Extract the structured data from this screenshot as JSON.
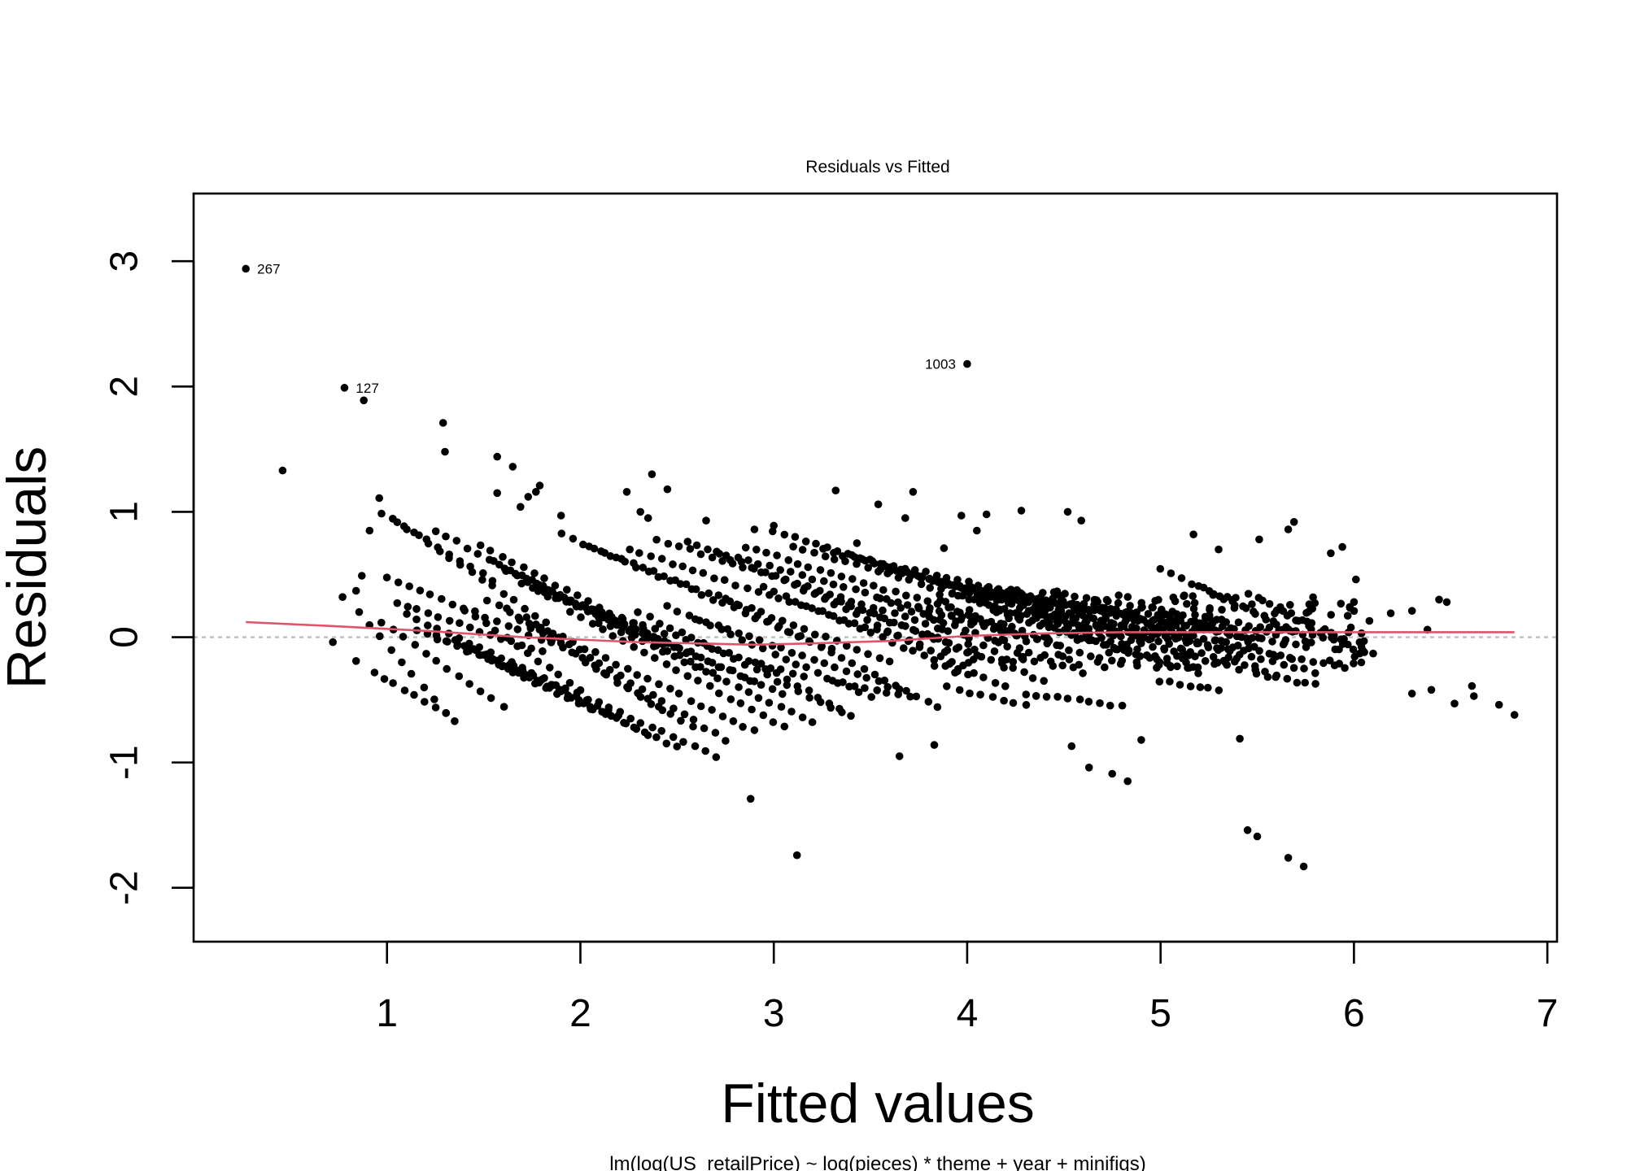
{
  "chart_data": {
    "type": "scatter",
    "title": "Residuals vs Fitted",
    "subtitle": "lm(log(US_retailPrice) ~ log(pieces) * theme + year + minifigs)",
    "xlabel": "Fitted values",
    "ylabel": "Residuals",
    "xlim": [
      0.0,
      7.05
    ],
    "ylim": [
      -2.43,
      3.54
    ],
    "xticks": [
      1,
      2,
      3,
      4,
      5,
      6,
      7
    ],
    "xtick_labels": [
      "1",
      "2",
      "3",
      "4",
      "5",
      "6",
      "7"
    ],
    "yticks": [
      -2,
      -1,
      0,
      1,
      2,
      3
    ],
    "ytick_labels": [
      "-2",
      "-1",
      "0",
      "1",
      "2",
      "3"
    ],
    "zero_line": true,
    "grid": false,
    "colors": {
      "points": "#000000",
      "smooth": "#DF536B",
      "zero_line": "#BEBEBE"
    },
    "labeled_points": [
      {
        "label": "267",
        "x": 0.27,
        "y": 2.94,
        "side": "right"
      },
      {
        "label": "127",
        "x": 0.78,
        "y": 1.99,
        "side": "right"
      },
      {
        "label": "1003",
        "x": 4.0,
        "y": 2.18,
        "side": "left"
      }
    ],
    "outliers": [
      [
        0.46,
        1.33
      ],
      [
        0.88,
        1.89
      ],
      [
        1.29,
        1.71
      ],
      [
        1.3,
        1.48
      ],
      [
        0.91,
        0.85
      ],
      [
        0.96,
        1.11
      ],
      [
        0.87,
        0.49
      ],
      [
        0.84,
        0.37
      ],
      [
        0.77,
        0.32
      ],
      [
        0.72,
        -0.04
      ],
      [
        0.84,
        -0.19
      ],
      [
        1.35,
        -0.67
      ],
      [
        1.57,
        1.44
      ],
      [
        1.65,
        1.36
      ],
      [
        1.57,
        1.15
      ],
      [
        1.69,
        1.04
      ],
      [
        1.79,
        1.21
      ],
      [
        1.77,
        1.16
      ],
      [
        1.73,
        1.12
      ],
      [
        2.37,
        1.3
      ],
      [
        2.24,
        1.16
      ],
      [
        2.31,
        1.0
      ],
      [
        2.35,
        0.95
      ],
      [
        3.32,
        1.17
      ],
      [
        3.54,
        1.06
      ],
      [
        3.68,
        0.95
      ],
      [
        3.72,
        1.16
      ],
      [
        3.97,
        0.97
      ],
      [
        4.1,
        0.98
      ],
      [
        4.28,
        1.01
      ],
      [
        4.52,
        1.0
      ],
      [
        4.59,
        0.93
      ],
      [
        5.17,
        0.82
      ],
      [
        5.66,
        0.86
      ],
      [
        5.69,
        0.92
      ],
      [
        5.94,
        0.72
      ],
      [
        5.88,
        0.67
      ],
      [
        5.51,
        0.78
      ],
      [
        6.01,
        0.46
      ],
      [
        6.44,
        0.3
      ],
      [
        6.48,
        0.28
      ],
      [
        6.3,
        0.21
      ],
      [
        6.19,
        0.19
      ],
      [
        6.08,
        0.13
      ],
      [
        6.38,
        0.06
      ],
      [
        6.3,
        -0.45
      ],
      [
        6.4,
        -0.42
      ],
      [
        6.52,
        -0.53
      ],
      [
        6.61,
        -0.39
      ],
      [
        6.62,
        -0.47
      ],
      [
        6.75,
        -0.54
      ],
      [
        6.83,
        -0.62
      ],
      [
        2.88,
        -1.29
      ],
      [
        3.12,
        -1.74
      ],
      [
        3.65,
        -0.95
      ],
      [
        3.83,
        -0.86
      ],
      [
        5.41,
        -0.81
      ],
      [
        4.9,
        -0.82
      ],
      [
        4.83,
        -1.15
      ],
      [
        4.75,
        -1.09
      ],
      [
        4.63,
        -1.04
      ],
      [
        4.54,
        -0.87
      ],
      [
        5.45,
        -1.54
      ],
      [
        5.5,
        -1.59
      ],
      [
        5.66,
        -1.76
      ],
      [
        5.74,
        -1.83
      ],
      [
        1.9,
        0.97
      ],
      [
        2.45,
        1.18
      ],
      [
        2.9,
        0.86
      ],
      [
        3.0,
        0.89
      ],
      [
        3.43,
        0.75
      ],
      [
        3.88,
        0.71
      ],
      [
        4.05,
        0.85
      ],
      [
        5.3,
        0.7
      ],
      [
        2.65,
        0.93
      ]
    ],
    "bands": [
      [
        0.97,
        0.99,
        1.55,
        0.45
      ],
      [
        1.05,
        0.92,
        1.82,
        0.12
      ],
      [
        1.25,
        0.85,
        2.25,
        0.05
      ],
      [
        1.48,
        0.73,
        2.55,
        -0.12
      ],
      [
        1.55,
        0.6,
        2.68,
        -0.28
      ],
      [
        1.62,
        0.52,
        2.9,
        -0.35
      ],
      [
        1.7,
        0.42,
        3.05,
        -0.45
      ],
      [
        1.78,
        0.36,
        3.15,
        -0.32
      ],
      [
        1.9,
        0.82,
        3.3,
        -0.1
      ],
      [
        2.05,
        0.72,
        3.6,
        -0.2
      ],
      [
        2.25,
        0.7,
        3.75,
        -0.05
      ],
      [
        2.4,
        0.78,
        3.9,
        0.05
      ],
      [
        2.55,
        0.76,
        4.05,
        -0.15
      ],
      [
        2.7,
        0.68,
        4.25,
        0.02
      ],
      [
        2.85,
        0.72,
        4.4,
        0.0
      ],
      [
        3.0,
        0.85,
        4.6,
        0.08
      ],
      [
        3.1,
        0.73,
        4.8,
        -0.05
      ],
      [
        3.25,
        0.7,
        4.95,
        -0.02
      ],
      [
        3.4,
        0.65,
        5.1,
        0.05
      ],
      [
        3.55,
        0.55,
        5.2,
        -0.05
      ],
      [
        3.7,
        0.5,
        5.35,
        -0.1
      ],
      [
        3.85,
        0.44,
        5.45,
        0.0
      ],
      [
        4.05,
        0.4,
        5.6,
        0.02
      ],
      [
        4.25,
        0.33,
        5.75,
        -0.08
      ],
      [
        4.45,
        0.36,
        5.9,
        -0.02
      ],
      [
        1.0,
        0.48,
        1.85,
        -0.05
      ],
      [
        1.05,
        0.28,
        1.8,
        -0.12
      ],
      [
        1.1,
        0.18,
        1.75,
        -0.28
      ],
      [
        1.15,
        0.06,
        1.9,
        -0.42
      ],
      [
        1.25,
        0.02,
        2.05,
        -0.58
      ],
      [
        1.35,
        -0.02,
        2.2,
        -0.62
      ],
      [
        1.45,
        -0.1,
        2.35,
        -0.78
      ],
      [
        1.55,
        -0.18,
        2.5,
        -0.88
      ],
      [
        1.65,
        -0.22,
        2.7,
        -0.95
      ],
      [
        1.52,
        0.3,
        2.42,
        -0.58
      ],
      [
        1.62,
        0.22,
        2.58,
        -0.72
      ],
      [
        1.72,
        0.15,
        2.75,
        -0.82
      ],
      [
        1.8,
        0.08,
        2.9,
        -0.75
      ],
      [
        1.95,
        0.2,
        3.05,
        -0.72
      ],
      [
        2.1,
        0.12,
        3.2,
        -0.68
      ],
      [
        2.3,
        0.2,
        3.35,
        -0.6
      ],
      [
        2.45,
        0.25,
        3.5,
        -0.48
      ],
      [
        2.6,
        0.15,
        3.65,
        -0.42
      ],
      [
        2.75,
        0.3,
        3.85,
        -0.55
      ],
      [
        2.95,
        0.4,
        4.0,
        -0.3
      ],
      [
        3.15,
        0.38,
        4.2,
        -0.4
      ],
      [
        3.35,
        0.28,
        4.4,
        -0.35
      ],
      [
        3.55,
        0.3,
        4.6,
        -0.28
      ],
      [
        3.75,
        0.25,
        4.8,
        -0.22
      ],
      [
        3.95,
        0.33,
        5.0,
        -0.2
      ],
      [
        4.15,
        0.2,
        5.2,
        -0.28
      ],
      [
        4.35,
        0.18,
        5.4,
        -0.25
      ],
      [
        4.55,
        0.15,
        5.6,
        -0.3
      ],
      [
        4.75,
        0.1,
        5.8,
        -0.28
      ],
      [
        4.95,
        0.08,
        5.95,
        -0.25
      ],
      [
        0.85,
        0.2,
        1.3,
        -0.6
      ],
      [
        0.93,
        -0.28,
        1.3,
        -0.6
      ],
      [
        0.97,
        0.12,
        1.6,
        -0.55
      ],
      [
        1.4,
        0.22,
        2.0,
        -0.42
      ],
      [
        2.9,
        -0.2,
        3.4,
        -0.62
      ],
      [
        3.3,
        -0.35,
        3.7,
        -0.48
      ],
      [
        3.9,
        -0.4,
        4.3,
        -0.55
      ],
      [
        4.3,
        -0.45,
        4.8,
        -0.55
      ],
      [
        5.0,
        0.55,
        5.6,
        0.1
      ],
      [
        5.2,
        0.4,
        5.7,
        0.05
      ],
      [
        5.45,
        0.35,
        5.95,
        -0.02
      ],
      [
        5.6,
        0.22,
        6.0,
        -0.1
      ],
      [
        5.0,
        -0.35,
        5.3,
        -0.42
      ],
      [
        5.5,
        -0.3,
        5.8,
        -0.38
      ]
    ],
    "smooth": [
      [
        0.27,
        0.12
      ],
      [
        0.7,
        0.09
      ],
      [
        1.2,
        0.05
      ],
      [
        1.7,
        0.0
      ],
      [
        2.3,
        -0.04
      ],
      [
        2.9,
        -0.06
      ],
      [
        3.2,
        -0.05
      ],
      [
        3.6,
        -0.03
      ],
      [
        4.0,
        0.01
      ],
      [
        4.4,
        0.03
      ],
      [
        4.8,
        0.04
      ],
      [
        5.2,
        0.04
      ],
      [
        5.8,
        0.04
      ],
      [
        6.4,
        0.04
      ],
      [
        6.83,
        0.04
      ]
    ]
  }
}
